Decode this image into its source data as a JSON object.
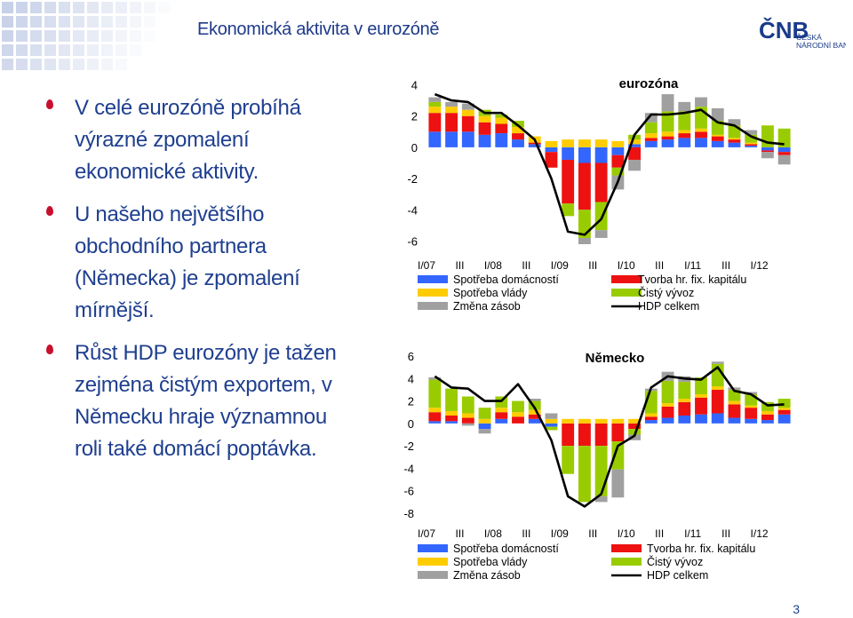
{
  "header": {
    "title": "Ekonomická aktivita v eurozóně"
  },
  "logo": {
    "acronym": "ČNB",
    "line1": "ČESKÁ",
    "line2": "NÁRODNÍ BANKA"
  },
  "bullets": [
    "V celé eurozóně probíhá výrazné zpomalení ekonomické aktivity.",
    "U našeho největšího obchodního partnera (Německa) je zpomalení mírnější.",
    "Růst HDP eurozóny je tažen zejména čistým exportem, v Německu hraje významnou roli také domácí poptávka."
  ],
  "page_number": "3",
  "colors": {
    "household": "#3366ff",
    "fixed_capital": "#ee1111",
    "government": "#ffcc00",
    "net_exports": "#99cc00",
    "inventories": "#a0a0a0",
    "gdp": "#000000"
  },
  "chart_data": [
    {
      "type": "bar",
      "stacked": true,
      "title": "eurozóna",
      "x_tick_labels": [
        "I/07",
        "III",
        "I/08",
        "III",
        "I/09",
        "III",
        "I/10",
        "III",
        "I/11",
        "III",
        "I/12"
      ],
      "quarters": [
        "I/07",
        "II/07",
        "III/07",
        "IV/07",
        "I/08",
        "II/08",
        "III/08",
        "IV/08",
        "I/09",
        "II/09",
        "III/09",
        "IV/09",
        "I/10",
        "II/10",
        "III/10",
        "IV/10",
        "I/11",
        "II/11",
        "III/11",
        "IV/11",
        "I/12",
        "II/12"
      ],
      "yticks": [
        4,
        2,
        0,
        -2,
        -4,
        -6
      ],
      "ylim": [
        -6.2,
        4.2
      ],
      "legend": [
        {
          "key": "household",
          "label": "Spotřeba domácností"
        },
        {
          "key": "fixed_capital",
          "label": "Tvorba hr. fix. kapitálu"
        },
        {
          "key": "government",
          "label": "Spotřeba vlády"
        },
        {
          "key": "net_exports",
          "label": "Čistý vývoz"
        },
        {
          "key": "inventories",
          "label": "Změna zásob"
        },
        {
          "key": "gdp",
          "label": "HDP celkem"
        }
      ],
      "series": [
        {
          "key": "household",
          "values": [
            1.0,
            1.0,
            1.0,
            0.8,
            0.9,
            0.5,
            0.2,
            -0.3,
            -0.8,
            -1.0,
            -1.0,
            -0.5,
            0.2,
            0.4,
            0.5,
            0.6,
            0.6,
            0.4,
            0.3,
            0.1,
            -0.2,
            -0.3
          ]
        },
        {
          "key": "fixed_capital",
          "values": [
            1.2,
            1.2,
            1.0,
            0.8,
            0.6,
            0.4,
            0.1,
            -1.0,
            -2.8,
            -3.0,
            -2.5,
            -0.8,
            -0.8,
            0.2,
            0.2,
            0.3,
            0.4,
            0.3,
            0.2,
            0.1,
            -0.1,
            -0.2
          ]
        },
        {
          "key": "government",
          "values": [
            0.4,
            0.4,
            0.4,
            0.4,
            0.4,
            0.4,
            0.4,
            0.4,
            0.5,
            0.5,
            0.5,
            0.4,
            0.3,
            0.3,
            0.3,
            0.2,
            0.2,
            0.1,
            0.1,
            0.1,
            0.0,
            0.0
          ]
        },
        {
          "key": "net_exports",
          "values": [
            0.3,
            0.0,
            0.0,
            0.4,
            0.2,
            0.4,
            0.0,
            0.0,
            -0.8,
            -1.8,
            -1.8,
            -0.5,
            0.3,
            0.7,
            1.3,
            1.2,
            1.4,
            0.9,
            0.8,
            0.5,
            1.4,
            1.2
          ]
        },
        {
          "key": "inventories",
          "values": [
            0.3,
            0.3,
            0.4,
            0.0,
            0.0,
            0.0,
            0.0,
            0.0,
            0.0,
            -0.4,
            -0.5,
            -0.9,
            -0.7,
            0.6,
            1.1,
            0.6,
            0.6,
            0.8,
            0.4,
            0.3,
            -0.4,
            -0.6
          ]
        }
      ],
      "gdp": [
        3.4,
        3.0,
        2.9,
        2.2,
        2.2,
        1.4,
        0.5,
        -2.0,
        -5.4,
        -5.6,
        -4.6,
        -2.2,
        0.8,
        2.1,
        2.1,
        2.2,
        2.4,
        1.6,
        1.4,
        0.7,
        0.3,
        0.2
      ]
    },
    {
      "type": "bar",
      "stacked": true,
      "title": "Německo",
      "x_tick_labels": [
        "I/07",
        "III",
        "I/08",
        "III",
        "I/09",
        "III",
        "I/10",
        "III",
        "I/11",
        "III",
        "I/12"
      ],
      "quarters": [
        "I/07",
        "II/07",
        "III/07",
        "IV/07",
        "I/08",
        "II/08",
        "III/08",
        "IV/08",
        "I/09",
        "II/09",
        "III/09",
        "IV/09",
        "I/10",
        "II/10",
        "III/10",
        "IV/10",
        "I/11",
        "II/11",
        "III/11",
        "IV/11",
        "I/12",
        "II/12"
      ],
      "yticks": [
        6,
        4,
        2,
        0,
        -2,
        -4,
        -6,
        -8
      ],
      "ylim": [
        -8,
        6
      ],
      "legend": [
        {
          "key": "household",
          "label": "Spotřeba domácností"
        },
        {
          "key": "fixed_capital",
          "label": "Tvorba hr. fix. kapitálu"
        },
        {
          "key": "government",
          "label": "Spotřeba vlády"
        },
        {
          "key": "net_exports",
          "label": "Čistý vývoz"
        },
        {
          "key": "inventories",
          "label": "Změna zásob"
        },
        {
          "key": "gdp",
          "label": "HDP celkem"
        }
      ],
      "series": [
        {
          "key": "household",
          "values": [
            0.2,
            0.2,
            0.0,
            -0.5,
            0.4,
            0.0,
            0.4,
            -0.3,
            0.0,
            0.0,
            0.0,
            0.0,
            0.0,
            0.3,
            0.5,
            0.7,
            0.8,
            0.9,
            0.5,
            0.4,
            0.3,
            0.8
          ]
        },
        {
          "key": "fixed_capital",
          "values": [
            0.8,
            0.5,
            0.5,
            0.0,
            0.6,
            0.6,
            0.4,
            0.0,
            -2.0,
            -2.0,
            -2.0,
            -1.6,
            -0.5,
            0.3,
            1.0,
            1.2,
            1.5,
            2.1,
            1.2,
            1.0,
            0.5,
            0.4
          ]
        },
        {
          "key": "government",
          "values": [
            0.4,
            0.4,
            0.4,
            0.4,
            0.4,
            0.4,
            0.4,
            0.4,
            0.4,
            0.4,
            0.4,
            0.4,
            0.4,
            0.3,
            0.3,
            0.3,
            0.3,
            0.3,
            0.3,
            0.2,
            0.3,
            0.2
          ]
        },
        {
          "key": "net_exports",
          "values": [
            2.5,
            2.0,
            1.5,
            1.0,
            1.0,
            1.0,
            0.8,
            -0.3,
            -2.5,
            -5.0,
            -4.5,
            -2.5,
            -0.5,
            2.0,
            2.0,
            1.5,
            1.5,
            2.0,
            1.0,
            1.0,
            0.8,
            0.8
          ]
        },
        {
          "key": "inventories",
          "values": [
            0.2,
            0.0,
            -0.2,
            -0.4,
            0.0,
            0.0,
            0.2,
            0.5,
            0.0,
            0.0,
            -0.5,
            -2.5,
            -0.5,
            0.2,
            0.8,
            0.5,
            0.0,
            0.2,
            0.2,
            0.2,
            0.0,
            0.0
          ]
        }
      ],
      "gdp": [
        4.2,
        3.2,
        3.1,
        2.0,
        2.0,
        3.5,
        1.4,
        -1.5,
        -6.5,
        -7.4,
        -6.3,
        -2.0,
        -1.1,
        3.2,
        4.2,
        4.0,
        3.9,
        5.0,
        2.9,
        2.6,
        1.6,
        1.7
      ]
    }
  ]
}
